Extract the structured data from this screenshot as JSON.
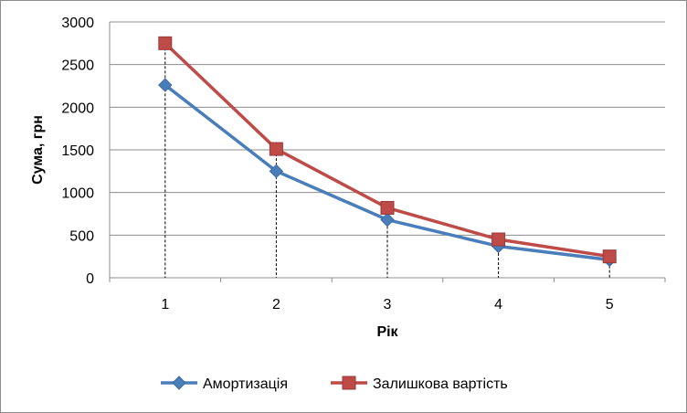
{
  "chart_data": {
    "type": "line",
    "title": "",
    "xlabel": "Рік",
    "ylabel": "Сума, грн",
    "x": [
      1,
      2,
      3,
      4,
      5
    ],
    "ylim": [
      0,
      3000
    ],
    "yticks": [
      0,
      500,
      1000,
      1500,
      2000,
      2500,
      3000
    ],
    "grid": "horizontal",
    "legend_position": "bottom",
    "drop_lines": true,
    "series": [
      {
        "name": "Амортизація",
        "values": [
          2260,
          1250,
          680,
          370,
          210
        ],
        "color": "#4a7ebb",
        "marker": "diamond"
      },
      {
        "name": "Залишкова вартість",
        "values": [
          2750,
          1510,
          820,
          450,
          250
        ],
        "color": "#be4b48",
        "marker": "square"
      }
    ]
  }
}
